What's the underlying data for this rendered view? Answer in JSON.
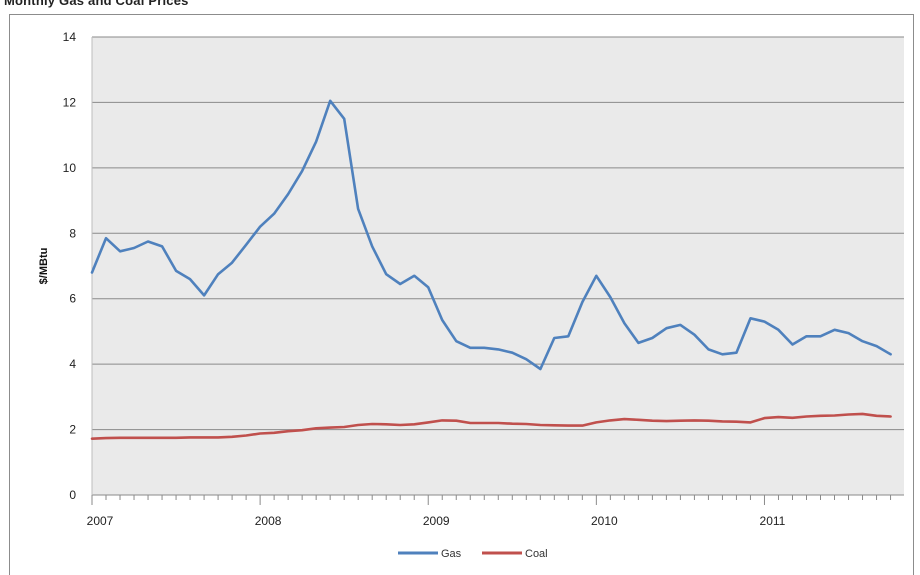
{
  "chart_data": {
    "type": "line",
    "title_clipped": "Monthly Gas and Coal Prices",
    "ylabel": "$/MBtu",
    "xlabel": "",
    "ylim": [
      0,
      14
    ],
    "yticks": [
      0,
      2,
      4,
      6,
      8,
      10,
      12,
      14
    ],
    "xlim": [
      2007,
      2011.83
    ],
    "xticks": [
      {
        "value": 2007,
        "label": "2007"
      },
      {
        "value": 2008,
        "label": "2008"
      },
      {
        "value": 2009,
        "label": "2009"
      },
      {
        "value": 2010,
        "label": "2010"
      },
      {
        "value": 2011,
        "label": "2011"
      }
    ],
    "grid": true,
    "legend": "bottom-center",
    "series": [
      {
        "name": "Gas",
        "color": "#4f81bd",
        "x": [
          2007.0,
          2007.083,
          2007.167,
          2007.25,
          2007.333,
          2007.417,
          2007.5,
          2007.583,
          2007.667,
          2007.75,
          2007.833,
          2007.917,
          2008.0,
          2008.083,
          2008.167,
          2008.25,
          2008.333,
          2008.417,
          2008.5,
          2008.583,
          2008.667,
          2008.75,
          2008.833,
          2008.917,
          2009.0,
          2009.083,
          2009.167,
          2009.25,
          2009.333,
          2009.417,
          2009.5,
          2009.583,
          2009.667,
          2009.75,
          2009.833,
          2009.917,
          2010.0,
          2010.083,
          2010.167,
          2010.25,
          2010.333,
          2010.417,
          2010.5,
          2010.583,
          2010.667,
          2010.75,
          2010.833,
          2010.917,
          2011.0,
          2011.083,
          2011.167,
          2011.25,
          2011.333,
          2011.417,
          2011.5,
          2011.583,
          2011.667,
          2011.75
        ],
        "values": [
          6.8,
          7.85,
          7.45,
          7.55,
          7.75,
          7.6,
          6.85,
          6.6,
          6.1,
          6.75,
          7.1,
          7.65,
          8.2,
          8.6,
          9.2,
          9.9,
          10.8,
          12.05,
          11.5,
          8.75,
          7.6,
          6.75,
          6.45,
          6.7,
          6.35,
          5.35,
          4.7,
          4.5,
          4.5,
          4.45,
          4.35,
          4.15,
          3.85,
          4.8,
          4.85,
          5.9,
          6.7,
          6.05,
          5.25,
          4.65,
          4.8,
          5.1,
          5.2,
          4.9,
          4.45,
          4.3,
          4.35,
          5.4,
          5.3,
          5.05,
          4.6,
          4.85,
          4.85,
          5.05,
          4.95,
          4.7,
          4.55,
          4.3
        ]
      },
      {
        "name": "Coal",
        "color": "#c0504d",
        "x": [
          2007.0,
          2007.083,
          2007.167,
          2007.25,
          2007.333,
          2007.417,
          2007.5,
          2007.583,
          2007.667,
          2007.75,
          2007.833,
          2007.917,
          2008.0,
          2008.083,
          2008.167,
          2008.25,
          2008.333,
          2008.417,
          2008.5,
          2008.583,
          2008.667,
          2008.75,
          2008.833,
          2008.917,
          2009.0,
          2009.083,
          2009.167,
          2009.25,
          2009.333,
          2009.417,
          2009.5,
          2009.583,
          2009.667,
          2009.75,
          2009.833,
          2009.917,
          2010.0,
          2010.083,
          2010.167,
          2010.25,
          2010.333,
          2010.417,
          2010.5,
          2010.583,
          2010.667,
          2010.75,
          2010.833,
          2010.917,
          2011.0,
          2011.083,
          2011.167,
          2011.25,
          2011.333,
          2011.417,
          2011.5,
          2011.583,
          2011.667,
          2011.75
        ],
        "values": [
          1.72,
          1.74,
          1.75,
          1.75,
          1.75,
          1.75,
          1.75,
          1.76,
          1.76,
          1.76,
          1.78,
          1.82,
          1.88,
          1.9,
          1.95,
          1.98,
          2.04,
          2.06,
          2.08,
          2.14,
          2.17,
          2.16,
          2.14,
          2.16,
          2.22,
          2.28,
          2.27,
          2.2,
          2.2,
          2.2,
          2.18,
          2.17,
          2.14,
          2.13,
          2.12,
          2.12,
          2.22,
          2.28,
          2.32,
          2.3,
          2.27,
          2.26,
          2.27,
          2.28,
          2.27,
          2.25,
          2.24,
          2.22,
          2.35,
          2.38,
          2.36,
          2.4,
          2.42,
          2.43,
          2.46,
          2.48,
          2.42,
          2.4
        ]
      }
    ]
  }
}
